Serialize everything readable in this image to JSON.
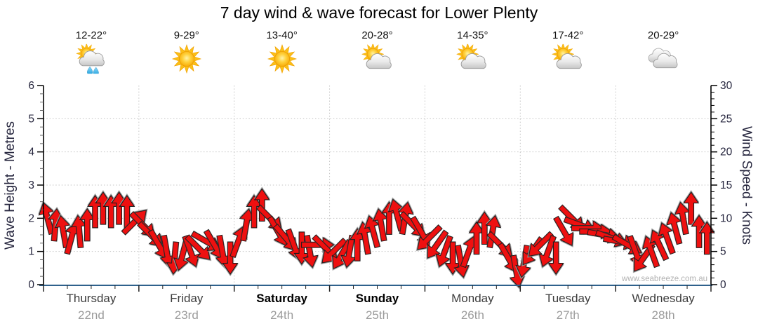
{
  "title": "7 day wind & wave forecast for Lower Plenty",
  "watermark": "www.seabreeze.com.au",
  "days": [
    {
      "name": "Thursday",
      "date": "22nd",
      "temp": "12-22°",
      "icon": "sun-cloud-rain",
      "weekend": false
    },
    {
      "name": "Friday",
      "date": "23rd",
      "temp": "9-29°",
      "icon": "sunny",
      "weekend": false
    },
    {
      "name": "Saturday",
      "date": "24th",
      "temp": "13-40°",
      "icon": "sunny",
      "weekend": true
    },
    {
      "name": "Sunday",
      "date": "25th",
      "temp": "20-28°",
      "icon": "sun-cloud",
      "weekend": true
    },
    {
      "name": "Monday",
      "date": "26th",
      "temp": "14-35°",
      "icon": "sun-cloud",
      "weekend": false
    },
    {
      "name": "Tuesday",
      "date": "27th",
      "temp": "17-42°",
      "icon": "sun-cloud",
      "weekend": false
    },
    {
      "name": "Wednesday",
      "date": "28th",
      "temp": "20-29°",
      "icon": "cloudy",
      "weekend": false
    }
  ],
  "left_axis": {
    "title": "Wave Height - Metres",
    "min": 0,
    "max": 6,
    "major": 1,
    "minor": 0.25
  },
  "right_axis": {
    "title": "Wind Speed - Knots",
    "min": 0,
    "max": 30,
    "major": 5,
    "minor": 1
  },
  "chart_data": {
    "type": "scatter",
    "subtype": "wind-direction-arrows",
    "title": "7 day wind & wave forecast for Lower Plenty",
    "categories": [
      "Thursday 22nd",
      "Friday 23rd",
      "Saturday 24th",
      "Sunday 25th",
      "Monday 26th",
      "Tuesday 27th",
      "Wednesday 28th"
    ],
    "points_per_day": 12,
    "time_step_hours": 2,
    "ylabel_left": "Wave Height - Metres",
    "ylabel_right": "Wind Speed - Knots",
    "ylim_left": [
      0,
      6
    ],
    "ylim_right": [
      0,
      30
    ],
    "grid": "dotted, horizontal every 5 knots (1 m), vertical at day boundaries",
    "legend_position": "none",
    "wind_speed_knots": [
      10,
      9,
      8,
      7,
      8,
      9,
      11,
      11.5,
      11,
      11.5,
      11,
      9.5,
      9,
      7.5,
      6,
      5,
      4,
      4.5,
      5,
      5.5,
      6.5,
      6,
      5,
      4,
      6.5,
      9,
      11,
      12,
      10,
      8,
      7,
      6,
      5.5,
      5,
      6,
      5.5,
      5,
      4.5,
      5,
      6,
      7,
      8,
      9,
      10,
      10.5,
      10,
      9,
      8,
      7,
      6,
      5,
      4,
      3.5,
      5,
      7,
      8.5,
      8,
      6,
      4,
      2,
      3.5,
      5,
      6,
      5,
      4,
      8,
      10,
      9,
      8.5,
      8,
      7.5,
      7,
      6.5,
      6,
      5,
      4,
      5,
      6,
      7,
      8.5,
      10,
      11.5,
      8,
      7
    ],
    "wind_dir_deg": [
      -15,
      5,
      -10,
      15,
      -5,
      0,
      0,
      0,
      0,
      0,
      0,
      45,
      135,
      135,
      150,
      170,
      185,
      195,
      160,
      135,
      120,
      150,
      170,
      180,
      20,
      10,
      0,
      0,
      135,
      150,
      140,
      160,
      180,
      170,
      90,
      135,
      225,
      210,
      190,
      0,
      -10,
      -15,
      -10,
      0,
      -15,
      10,
      135,
      150,
      225,
      215,
      200,
      180,
      170,
      20,
      0,
      0,
      10,
      135,
      150,
      170,
      190,
      215,
      225,
      200,
      180,
      150,
      135,
      110,
      90,
      90,
      100,
      110,
      100,
      120,
      160,
      215,
      -20,
      -25,
      -20,
      -15,
      -10,
      0,
      0,
      0
    ],
    "colors": {
      "arrow_fill": "#ee1010",
      "arrow_stroke": "#1c1c1c",
      "bottom_axis": "#2f618c",
      "gridline": "#c4c4c4",
      "tick_label": "#26263e",
      "watermark": "#b3b3b3"
    }
  }
}
